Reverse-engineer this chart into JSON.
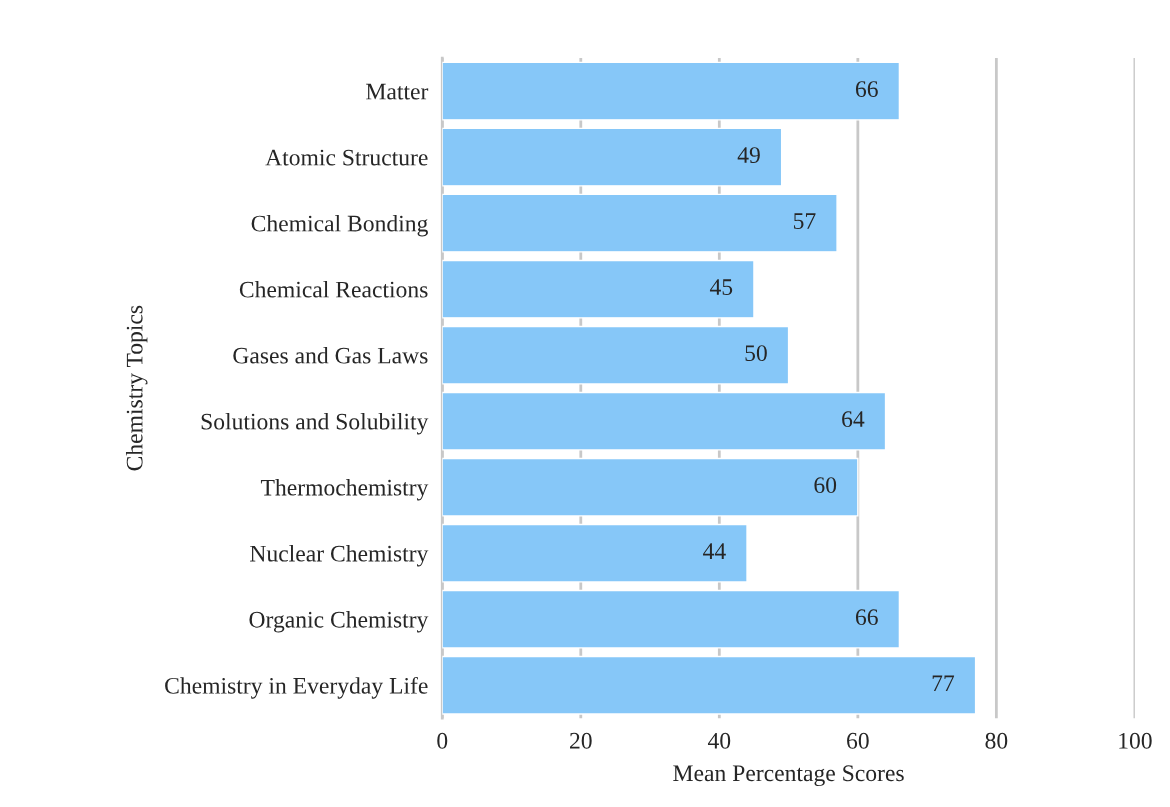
{
  "chart_data": {
    "type": "bar",
    "orientation": "horizontal",
    "xlabel": "Mean Percentage Scores",
    "ylabel": "Chemistry Topics",
    "categories": [
      "Matter",
      "Atomic Structure",
      "Chemical Bonding",
      "Chemical Reactions",
      "Gases and Gas Laws",
      "Solutions and Solubility",
      "Thermochemistry",
      "Nuclear Chemistry",
      "Organic Chemistry",
      "Chemistry in Everyday Life"
    ],
    "values": [
      66,
      49,
      57,
      45,
      50,
      64,
      60,
      44,
      66,
      77
    ],
    "color": "#86c7f8",
    "xlim": [
      0,
      100
    ],
    "xticks": [
      0,
      20,
      40,
      60,
      80,
      100
    ],
    "grid": "x",
    "data_labels": true
  }
}
